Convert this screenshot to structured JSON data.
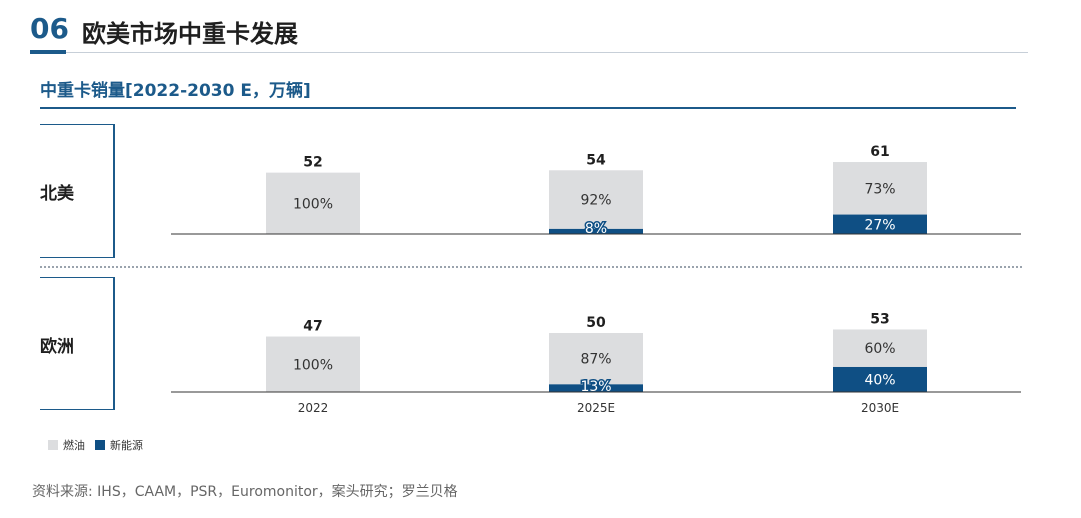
{
  "header": {
    "section_number": "06",
    "title": "欧美市场中重卡发展"
  },
  "subtitle": "中重卡销量[2022-2030 E，万辆]",
  "colors": {
    "primary": "#1c5a8a",
    "fuel": "#dcdddf",
    "nev": "#0f4f84",
    "axis": "#333333"
  },
  "legend": [
    {
      "name": "燃油",
      "color": "#dcdddf"
    },
    {
      "name": "新能源",
      "color": "#0f4f84"
    }
  ],
  "chart_data": {
    "type": "bar",
    "stacked": true,
    "categories": [
      "2022",
      "2025E",
      "2030E"
    ],
    "panels": [
      {
        "region": "北美",
        "totals": [
          "52",
          "54",
          "61"
        ],
        "series": [
          {
            "name": "燃油",
            "share": [
              100,
              92,
              73
            ],
            "labels": [
              "100%",
              "92%",
              "73%"
            ]
          },
          {
            "name": "新能源",
            "share": [
              0,
              8,
              27
            ],
            "labels": [
              "",
              "8%",
              "27%"
            ]
          }
        ]
      },
      {
        "region": "欧洲",
        "totals": [
          "47",
          "50",
          "53"
        ],
        "series": [
          {
            "name": "燃油",
            "share": [
              100,
              87,
              60
            ],
            "labels": [
              "100%",
              "87%",
              "60%"
            ]
          },
          {
            "name": "新能源",
            "share": [
              0,
              13,
              40
            ],
            "labels": [
              "",
              "13%",
              "40%"
            ]
          }
        ]
      }
    ]
  },
  "source": "资料来源: IHS，CAAM，PSR，Euromonitor，案头研究；罗兰贝格"
}
